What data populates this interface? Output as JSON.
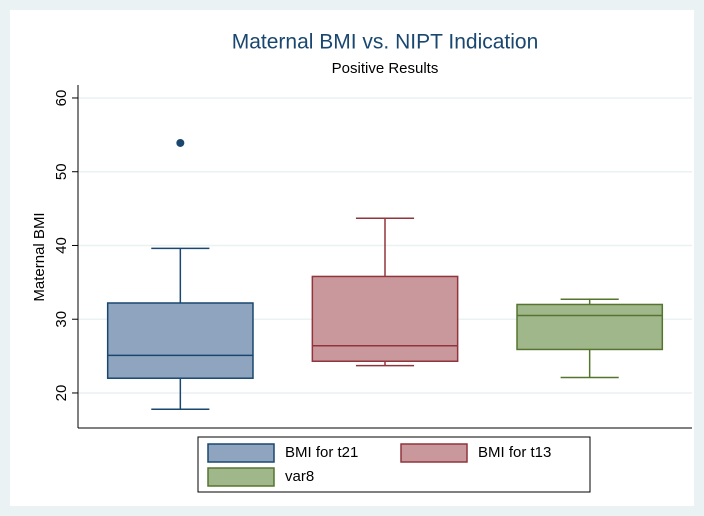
{
  "chart_data": {
    "type": "box",
    "title": "Maternal BMI vs. NIPT Indication",
    "subtitle": "Positive Results",
    "ylabel": "Maternal BMI",
    "ylim": [
      15.25,
      61.76
    ],
    "yticks": [
      20,
      30,
      40,
      50,
      60
    ],
    "grid": true,
    "series": [
      {
        "name": "BMI for t21",
        "color": "#1a476f",
        "fill": "#8fa5bf",
        "min": 17.8,
        "q1": 22.0,
        "median": 25.1,
        "q3": 32.2,
        "max": 39.6,
        "outliers": [
          53.9
        ]
      },
      {
        "name": "BMI for t13",
        "color": "#90353b",
        "fill": "#c9989c",
        "min": 23.7,
        "q1": 24.3,
        "median": 26.4,
        "q3": 35.8,
        "max": 43.7,
        "outliers": []
      },
      {
        "name": "var8",
        "color": "#55752f",
        "fill": "#a0b68b",
        "min": 22.1,
        "q1": 25.9,
        "median": 30.5,
        "q3": 32.0,
        "max": 32.7,
        "outliers": []
      }
    ]
  }
}
